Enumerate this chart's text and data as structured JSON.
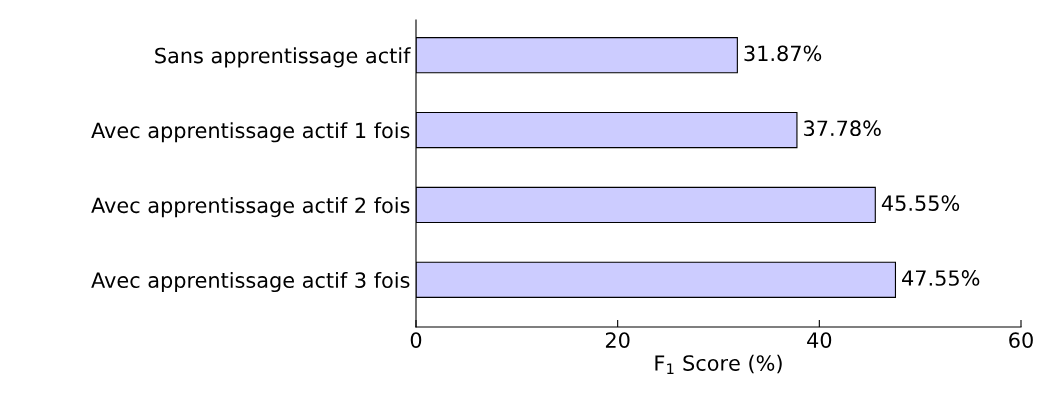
{
  "chart_data": {
    "type": "bar",
    "orientation": "horizontal",
    "xlabel": "F$_{1}$ Score (%)",
    "categories": [
      "Sans apprentissage actif",
      "Avec apprentissage actif 1 fois",
      "Avec apprentissage actif 2 fois",
      "Avec apprentissage actif 3 fois"
    ],
    "values": [
      31.87,
      37.78,
      45.55,
      47.55
    ],
    "value_labels": [
      "31.87%",
      "37.78%",
      "45.55%",
      "47.55%"
    ],
    "color": "#ccccff",
    "xlim": [
      0,
      60
    ],
    "xticks": [
      0,
      20,
      40,
      60
    ]
  }
}
